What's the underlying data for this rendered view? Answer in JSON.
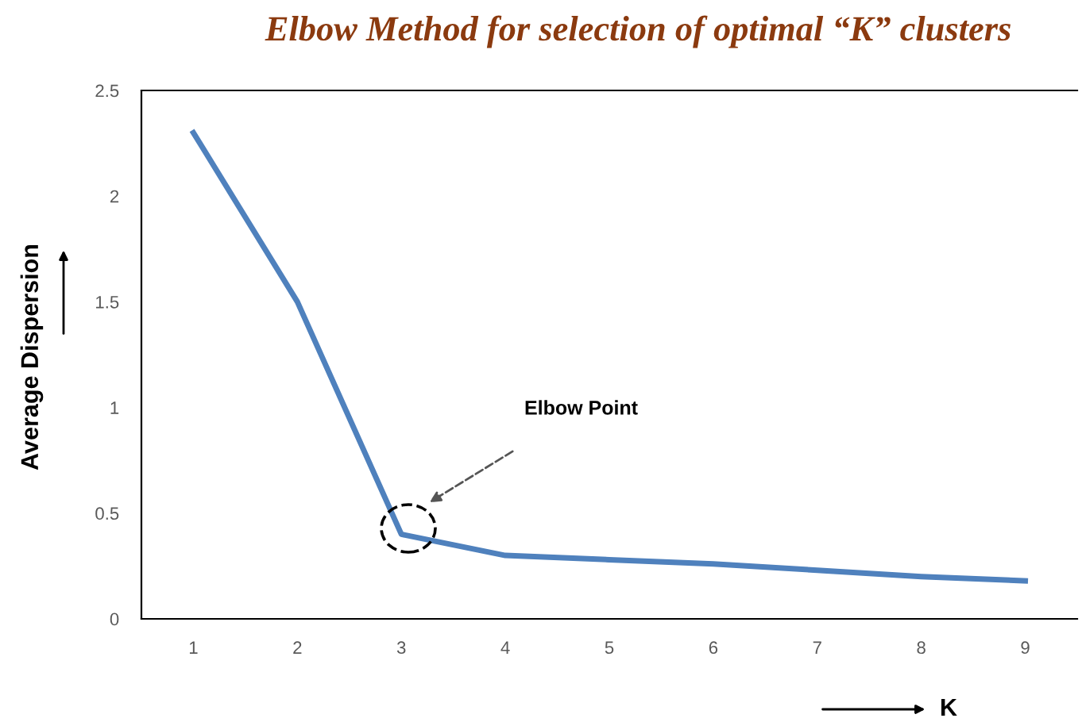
{
  "chart_data": {
    "type": "line",
    "title": "Elbow Method for selection of optimal “K” clusters",
    "xlabel": "K",
    "ylabel": "Average Dispersion",
    "categories": [
      "1",
      "2",
      "3",
      "4",
      "5",
      "6",
      "7",
      "8",
      "9"
    ],
    "series": [
      {
        "color": "#4f81bd",
        "values": [
          2.3,
          1.5,
          0.4,
          0.3,
          0.28,
          0.26,
          0.23,
          0.2,
          0.18
        ]
      }
    ],
    "ylim": [
      0,
      2.5
    ],
    "yticks": [
      0,
      {
        "value": 0.5,
        "label": "0.5"
      },
      1,
      {
        "value": 1.5,
        "label": "1.5"
      },
      2,
      {
        "value": 2.5,
        "label": "2.5"
      }
    ],
    "grid": false,
    "legend": false,
    "marker": "none",
    "line_style": "solid",
    "annotations": [
      "Elbow Point"
    ]
  }
}
